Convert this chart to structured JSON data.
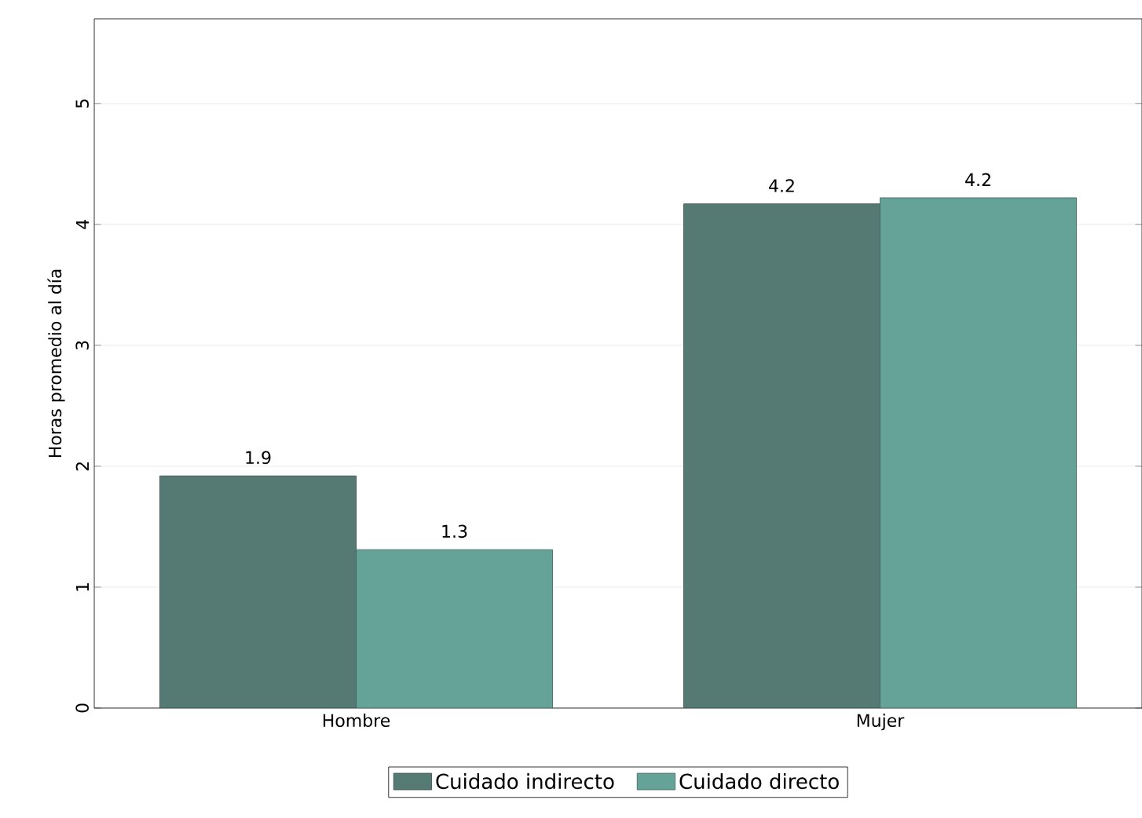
{
  "chart_data": {
    "type": "bar",
    "ylabel": "Horas promedio al día",
    "categories": [
      "Hombre",
      "Mujer"
    ],
    "series": [
      {
        "name": "Cuidado indirecto",
        "color": "#557a74",
        "values": [
          1.92,
          4.17
        ],
        "value_labels": [
          "1.9",
          "4.2"
        ]
      },
      {
        "name": "Cuidado directo",
        "color": "#65a298",
        "values": [
          1.31,
          4.22
        ],
        "value_labels": [
          "1.3",
          "4.2"
        ]
      }
    ],
    "ylim": [
      0,
      5.7
    ],
    "yticks": [
      0,
      1,
      2,
      3,
      4,
      5
    ],
    "grid": "y",
    "legend": "bottom"
  }
}
